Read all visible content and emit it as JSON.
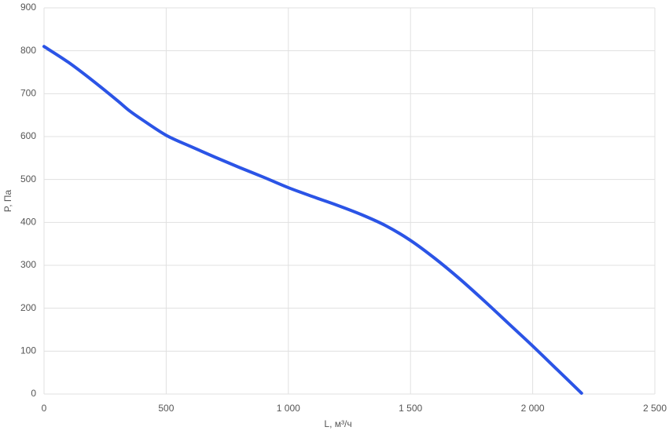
{
  "chart_data": {
    "type": "line",
    "x_label": "L, м³/ч",
    "y_label": "P, Па",
    "x": [
      0,
      100,
      200,
      300,
      350,
      400,
      500,
      600,
      700,
      800,
      900,
      1000,
      1100,
      1200,
      1300,
      1400,
      1500,
      1600,
      1700,
      1800,
      1900,
      2000,
      2100,
      2200
    ],
    "series": [
      {
        "color": "#2b54e6",
        "values": [
          810,
          773,
          730,
          684,
          660,
          640,
          603,
          577,
          552,
          528,
          505,
          481,
          460,
          440,
          418,
          392,
          358,
          316,
          269,
          218,
          165,
          112,
          57,
          2
        ]
      }
    ],
    "xlim": [
      0,
      2500
    ],
    "xticks": [
      0,
      500,
      {
        "value": 1000,
        "label": "1 000"
      },
      {
        "value": 1500,
        "label": "1 500"
      },
      {
        "value": 2000,
        "label": "2 000"
      },
      {
        "value": 2500,
        "label": "2 500"
      }
    ],
    "ylim": [
      0,
      900
    ],
    "yticks": [
      0,
      100,
      200,
      300,
      400,
      500,
      600,
      700,
      800,
      900
    ],
    "grid": true
  }
}
